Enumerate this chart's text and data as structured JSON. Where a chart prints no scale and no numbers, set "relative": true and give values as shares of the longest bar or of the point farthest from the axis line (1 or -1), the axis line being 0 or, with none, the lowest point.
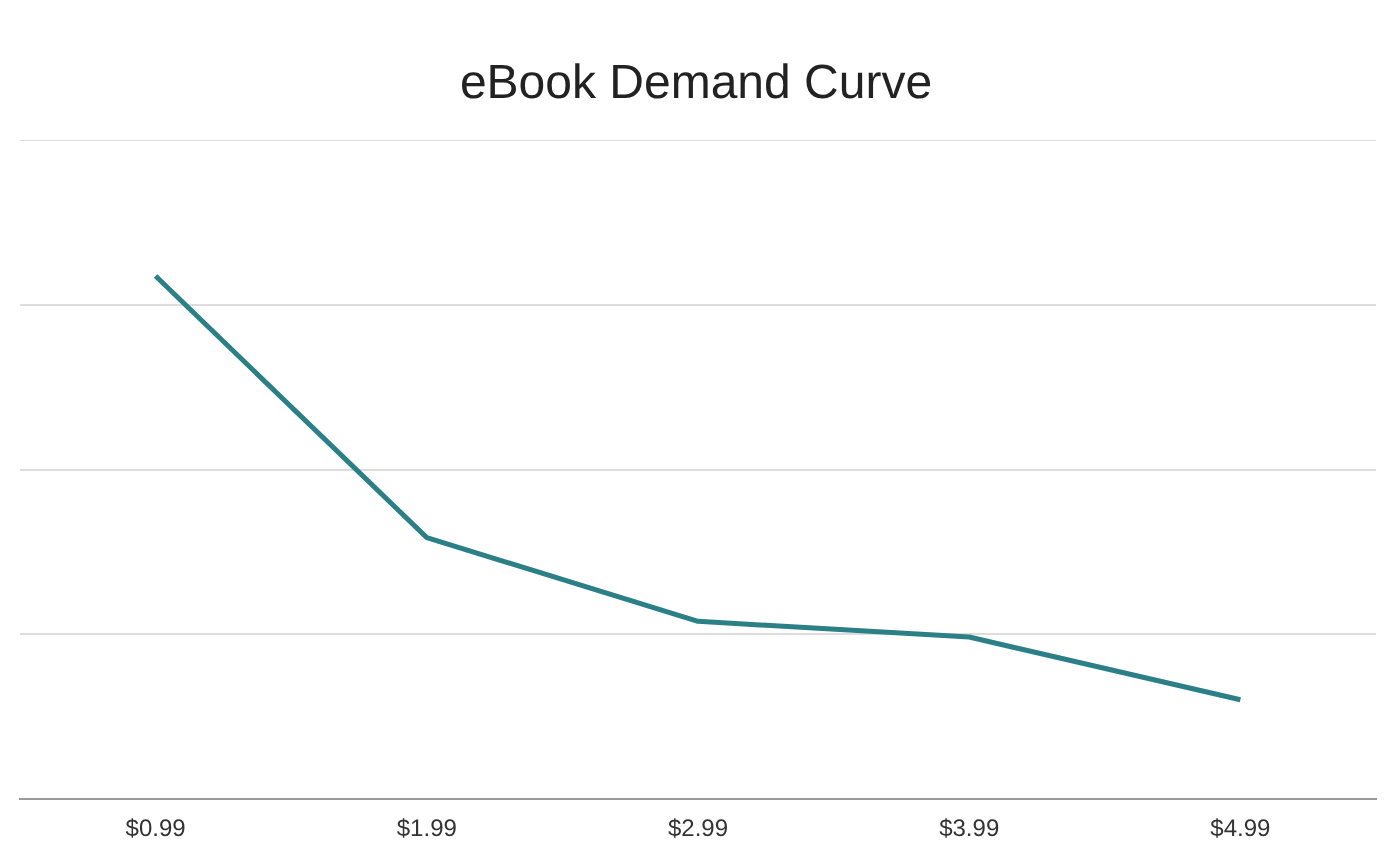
{
  "chart_data": {
    "type": "line",
    "title": "eBook Demand Curve",
    "categories": [
      "$0.99",
      "$1.99",
      "$2.99",
      "$3.99",
      "$4.99"
    ],
    "series": [
      {
        "color": "#2b7f86",
        "values": [
          1,
          0.5,
          0.34,
          0.31,
          0.19
        ]
      }
    ],
    "relative": true,
    "grid": "y",
    "marker": "none",
    "line_style": "solid",
    "legend": false
  }
}
